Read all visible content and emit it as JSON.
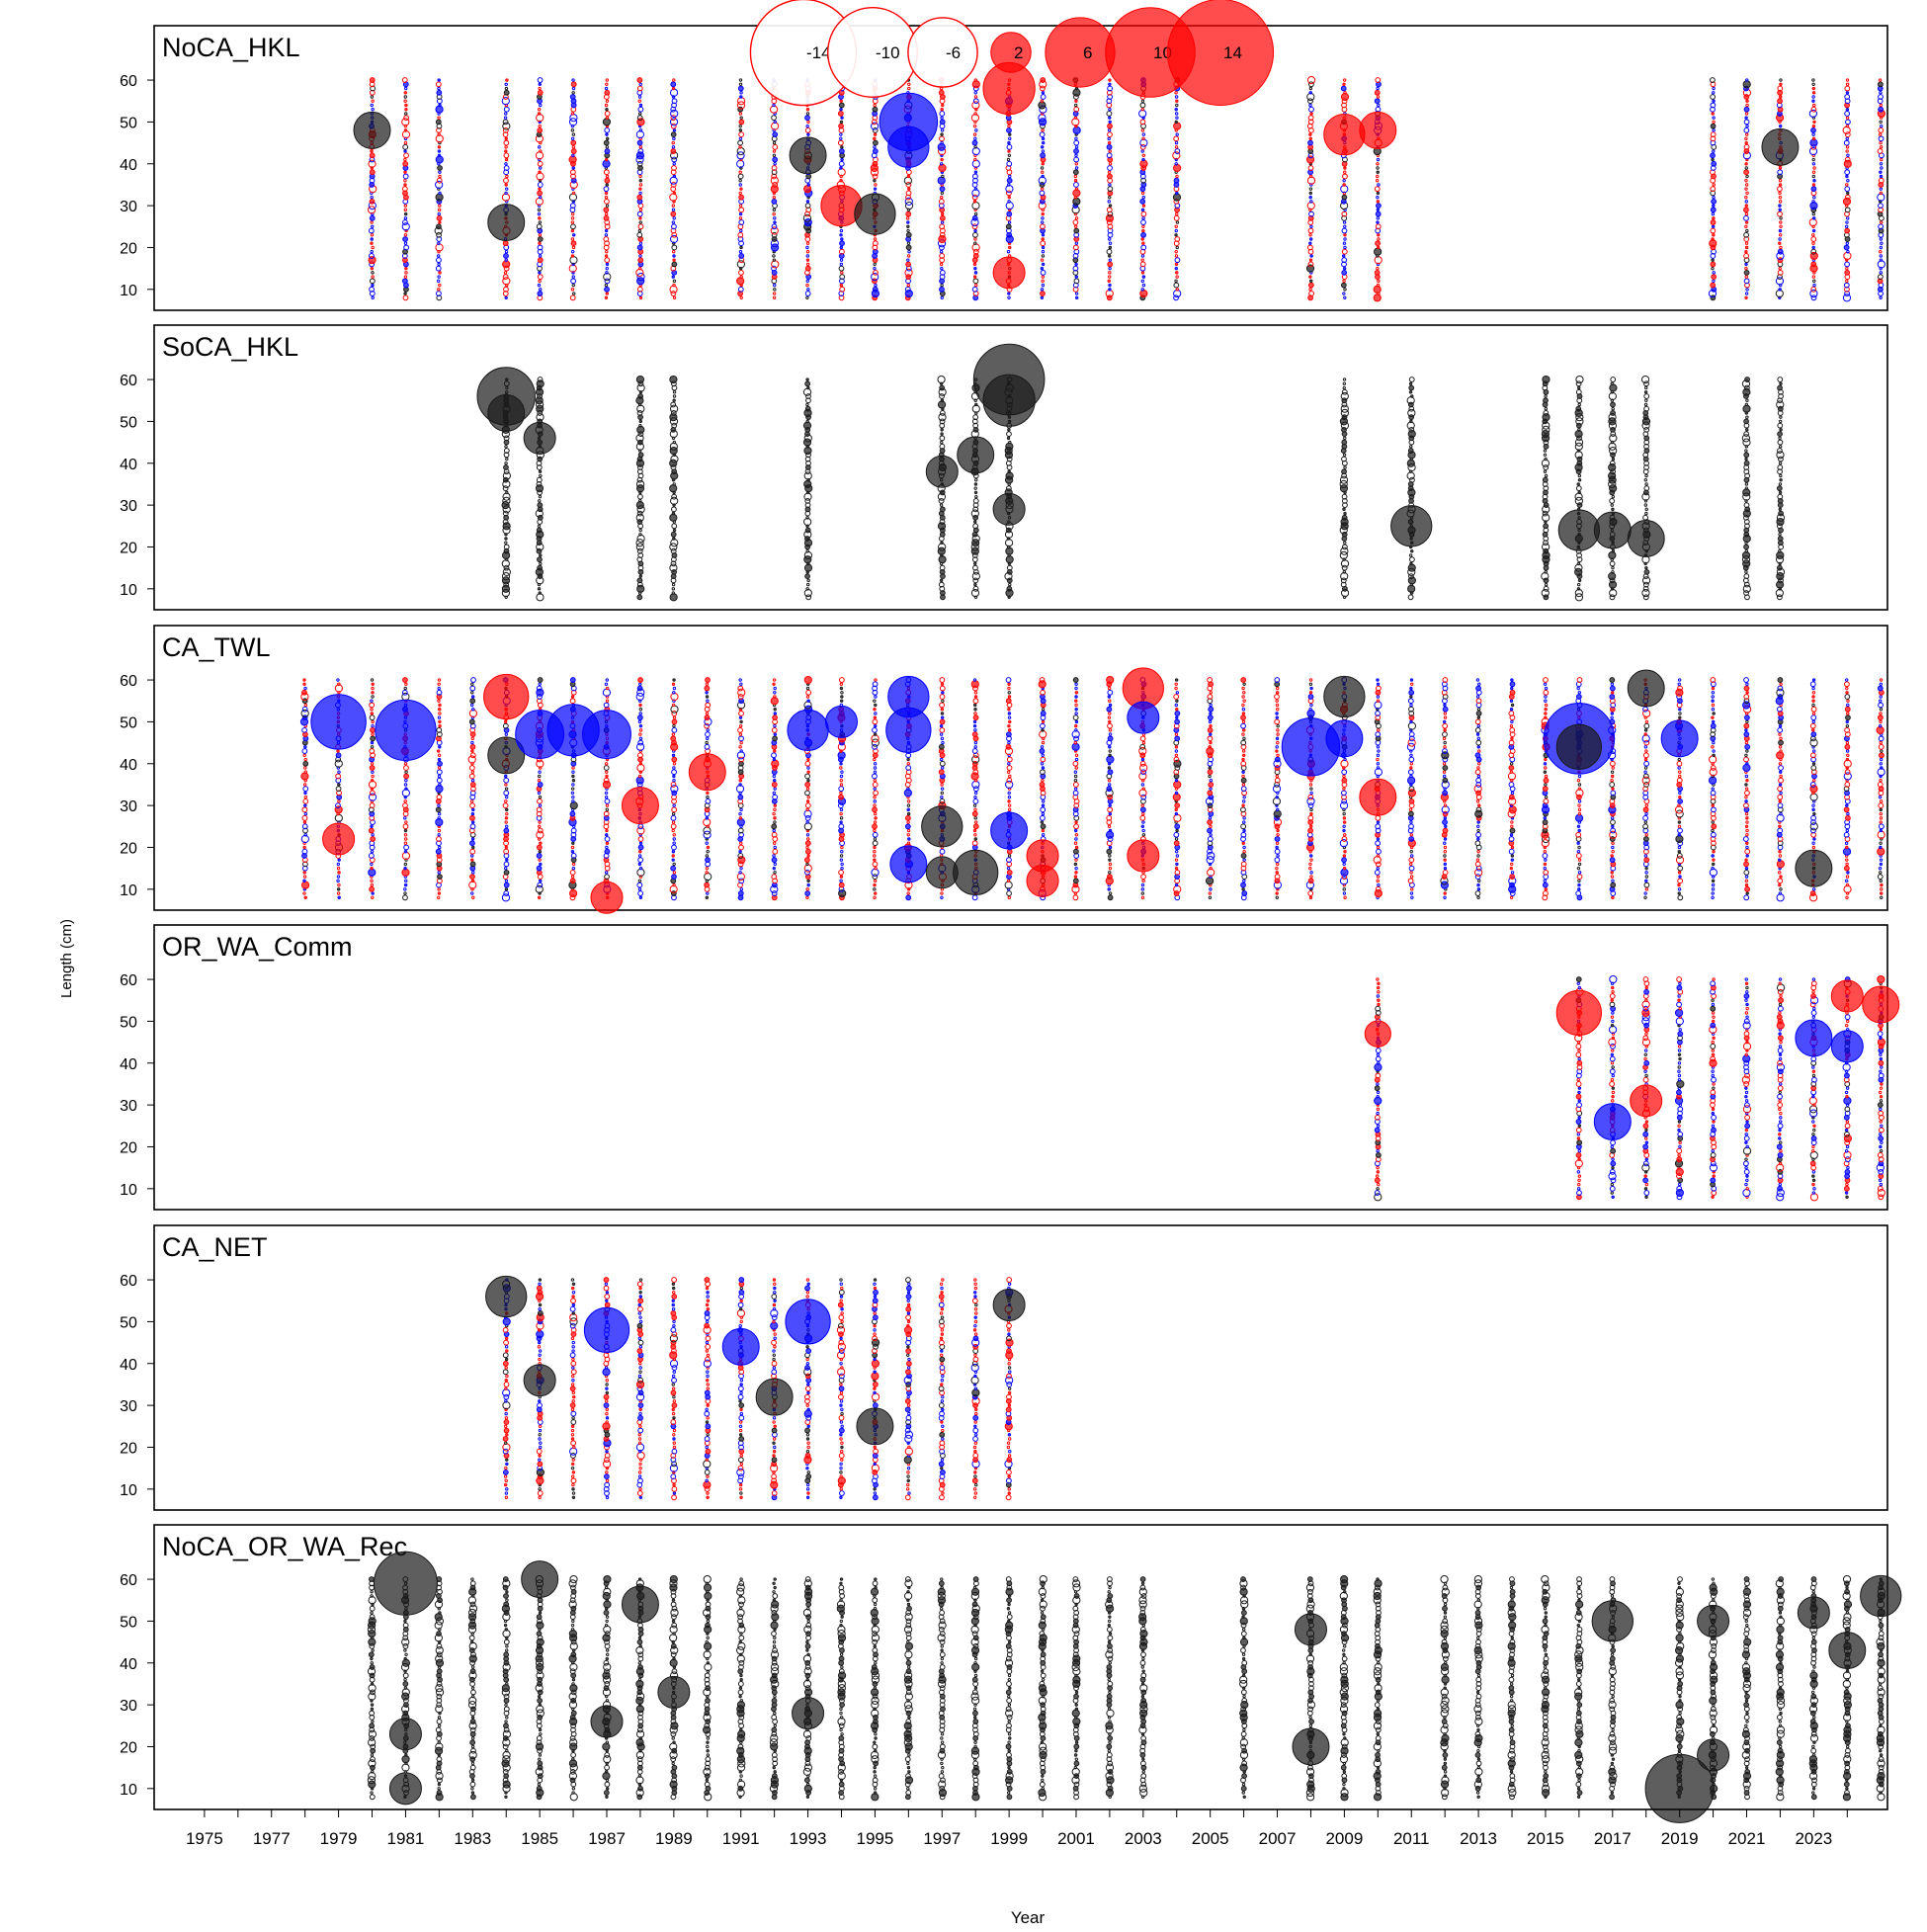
{
  "chart_data": {
    "type": "scatter",
    "subtype": "bubble (Pearson residuals)",
    "xlabel": "Year",
    "ylabel": "Length (cm)",
    "xlim": [
      1973.5,
      2025.2
    ],
    "ylim": [
      5,
      73
    ],
    "x_ticks": [
      1975,
      1976,
      1977,
      1978,
      1979,
      1980,
      1981,
      1982,
      1983,
      1984,
      1985,
      1986,
      1987,
      1988,
      1989,
      1990,
      1991,
      1992,
      1993,
      1994,
      1995,
      1996,
      1997,
      1998,
      1999,
      2000,
      2001,
      2002,
      2003,
      2004,
      2005,
      2006,
      2007,
      2008,
      2009,
      2010,
      2011,
      2012,
      2013,
      2014,
      2015,
      2016,
      2017,
      2018,
      2019,
      2020,
      2021,
      2022,
      2023,
      2024
    ],
    "x_tick_labels": [
      "1975",
      "1977",
      "1979",
      "1981",
      "1983",
      "1985",
      "1987",
      "1989",
      "1991",
      "1993",
      "1995",
      "1997",
      "1999",
      "2001",
      "2003",
      "2005",
      "2007",
      "2009",
      "2011",
      "2013",
      "2015",
      "2017",
      "2019",
      "2021",
      "2023"
    ],
    "y_ticks": [
      10,
      20,
      30,
      40,
      50,
      60
    ],
    "legend": {
      "position": "top-center",
      "entries": [
        {
          "label": "-14",
          "value": -14
        },
        {
          "label": "-10",
          "value": -10
        },
        {
          "label": "-6",
          "value": -6
        },
        {
          "label": "2",
          "value": 2
        },
        {
          "label": "6",
          "value": 6
        },
        {
          "label": "10",
          "value": 10
        },
        {
          "label": "14",
          "value": 14
        }
      ]
    },
    "colors": {
      "positive": "#ff0000",
      "negative": "#0000ff",
      "other": "#1a1a1a"
    },
    "panels": [
      {
        "name": "NoCA_HKL",
        "years": [
          1980,
          1981,
          1982,
          1984,
          1985,
          1986,
          1987,
          1988,
          1989,
          1991,
          1992,
          1993,
          1994,
          1995,
          1996,
          1997,
          1998,
          1999,
          2000,
          2001,
          2002,
          2003,
          2004,
          2008,
          2009,
          2010,
          2020,
          2021,
          2022,
          2023,
          2024,
          2025
        ],
        "highlights": [
          {
            "year": 1980,
            "length": 48,
            "value": 4,
            "color": "other"
          },
          {
            "year": 1984,
            "length": 26,
            "value": 4,
            "color": "other"
          },
          {
            "year": 1993,
            "length": 42,
            "value": 4,
            "color": "other"
          },
          {
            "year": 1994,
            "length": 30,
            "value": 5,
            "color": "positive"
          },
          {
            "year": 1995,
            "length": 28,
            "value": 5,
            "color": "other"
          },
          {
            "year": 1996,
            "length": 50,
            "value": 10,
            "color": "negative"
          },
          {
            "year": 1996,
            "length": 44,
            "value": 5,
            "color": "negative"
          },
          {
            "year": 1999,
            "length": 58,
            "value": 8,
            "color": "positive"
          },
          {
            "year": 1999,
            "length": 14,
            "value": 3,
            "color": "positive"
          },
          {
            "year": 2009,
            "length": 47,
            "value": 5,
            "color": "positive"
          },
          {
            "year": 2010,
            "length": 48,
            "value": 4,
            "color": "positive"
          },
          {
            "year": 2022,
            "length": 44,
            "value": 4,
            "color": "other"
          }
        ]
      },
      {
        "name": "SoCA_HKL",
        "years": [
          1984,
          1985,
          1988,
          1989,
          1993,
          1997,
          1998,
          1999,
          2009,
          2011,
          2015,
          2016,
          2017,
          2018,
          2021,
          2022
        ],
        "highlights": [
          {
            "year": 1984,
            "length": 56,
            "value": 10,
            "color": "other"
          },
          {
            "year": 1984,
            "length": 52,
            "value": 4,
            "color": "other"
          },
          {
            "year": 1985,
            "length": 46,
            "value": 3,
            "color": "other"
          },
          {
            "year": 1997,
            "length": 38,
            "value": 3,
            "color": "other"
          },
          {
            "year": 1998,
            "length": 42,
            "value": 4,
            "color": "other"
          },
          {
            "year": 1999,
            "length": 60,
            "value": 15,
            "color": "other"
          },
          {
            "year": 1999,
            "length": 55,
            "value": 8,
            "color": "other"
          },
          {
            "year": 1999,
            "length": 29,
            "value": 3,
            "color": "other"
          },
          {
            "year": 2011,
            "length": 25,
            "value": 5,
            "color": "other"
          },
          {
            "year": 2016,
            "length": 24,
            "value": 5,
            "color": "other"
          },
          {
            "year": 2017,
            "length": 24,
            "value": 4,
            "color": "other"
          },
          {
            "year": 2018,
            "length": 22,
            "value": 4,
            "color": "other"
          }
        ]
      },
      {
        "name": "CA_TWL",
        "years": [
          1978,
          1979,
          1980,
          1981,
          1982,
          1983,
          1984,
          1985,
          1986,
          1987,
          1988,
          1989,
          1990,
          1991,
          1992,
          1993,
          1994,
          1995,
          1996,
          1997,
          1998,
          1999,
          2000,
          2001,
          2002,
          2003,
          2004,
          2005,
          2006,
          2007,
          2008,
          2009,
          2010,
          2011,
          2012,
          2013,
          2014,
          2015,
          2016,
          2017,
          2018,
          2019,
          2020,
          2021,
          2022,
          2023,
          2024,
          2025
        ],
        "highlights": [
          {
            "year": 1979,
            "length": 50,
            "value": 9,
            "color": "negative"
          },
          {
            "year": 1979,
            "length": 22,
            "value": 3,
            "color": "positive"
          },
          {
            "year": 1981,
            "length": 48,
            "value": 11,
            "color": "negative"
          },
          {
            "year": 1984,
            "length": 56,
            "value": 6,
            "color": "positive"
          },
          {
            "year": 1984,
            "length": 42,
            "value": 4,
            "color": "other"
          },
          {
            "year": 1985,
            "length": 47,
            "value": 7,
            "color": "negative"
          },
          {
            "year": 1986,
            "length": 48,
            "value": 8,
            "color": "negative"
          },
          {
            "year": 1987,
            "length": 47,
            "value": 7,
            "color": "negative"
          },
          {
            "year": 1987,
            "length": 8,
            "value": 3,
            "color": "positive"
          },
          {
            "year": 1988,
            "length": 30,
            "value": 4,
            "color": "positive"
          },
          {
            "year": 1990,
            "length": 38,
            "value": 4,
            "color": "positive"
          },
          {
            "year": 1993,
            "length": 48,
            "value": 5,
            "color": "negative"
          },
          {
            "year": 1994,
            "length": 50,
            "value": 3,
            "color": "negative"
          },
          {
            "year": 1996,
            "length": 56,
            "value": 5,
            "color": "negative"
          },
          {
            "year": 1996,
            "length": 48,
            "value": 6,
            "color": "negative"
          },
          {
            "year": 1996,
            "length": 16,
            "value": 4,
            "color": "negative"
          },
          {
            "year": 1997,
            "length": 25,
            "value": 5,
            "color": "other"
          },
          {
            "year": 1997,
            "length": 14,
            "value": 3,
            "color": "other"
          },
          {
            "year": 1998,
            "length": 14,
            "value": 6,
            "color": "other"
          },
          {
            "year": 1999,
            "length": 24,
            "value": 4,
            "color": "negative"
          },
          {
            "year": 2000,
            "length": 18,
            "value": 3,
            "color": "positive"
          },
          {
            "year": 2000,
            "length": 12,
            "value": 3,
            "color": "positive"
          },
          {
            "year": 2003,
            "length": 58,
            "value": 5,
            "color": "positive"
          },
          {
            "year": 2003,
            "length": 51,
            "value": 3,
            "color": "negative"
          },
          {
            "year": 2003,
            "length": 18,
            "value": 3,
            "color": "positive"
          },
          {
            "year": 2008,
            "length": 44,
            "value": 10,
            "color": "negative"
          },
          {
            "year": 2009,
            "length": 56,
            "value": 5,
            "color": "other"
          },
          {
            "year": 2009,
            "length": 46,
            "value": 4,
            "color": "negative"
          },
          {
            "year": 2010,
            "length": 32,
            "value": 4,
            "color": "positive"
          },
          {
            "year": 2016,
            "length": 46,
            "value": 15,
            "color": "negative"
          },
          {
            "year": 2016,
            "length": 44,
            "value": 6,
            "color": "other"
          },
          {
            "year": 2018,
            "length": 58,
            "value": 4,
            "color": "other"
          },
          {
            "year": 2019,
            "length": 46,
            "value": 4,
            "color": "negative"
          },
          {
            "year": 2023,
            "length": 15,
            "value": 4,
            "color": "other"
          }
        ]
      },
      {
        "name": "OR_WA_Comm",
        "years": [
          2010,
          2016,
          2017,
          2018,
          2019,
          2020,
          2021,
          2022,
          2023,
          2024,
          2025
        ],
        "highlights": [
          {
            "year": 2010,
            "length": 47,
            "value": 2,
            "color": "positive"
          },
          {
            "year": 2016,
            "length": 52,
            "value": 6,
            "color": "positive"
          },
          {
            "year": 2017,
            "length": 26,
            "value": 4,
            "color": "negative"
          },
          {
            "year": 2018,
            "length": 31,
            "value": 3,
            "color": "positive"
          },
          {
            "year": 2023,
            "length": 46,
            "value": 4,
            "color": "negative"
          },
          {
            "year": 2024,
            "length": 56,
            "value": 3,
            "color": "positive"
          },
          {
            "year": 2024,
            "length": 44,
            "value": 3,
            "color": "negative"
          },
          {
            "year": 2025,
            "length": 54,
            "value": 4,
            "color": "positive"
          }
        ]
      },
      {
        "name": "CA_NET",
        "years": [
          1984,
          1985,
          1986,
          1987,
          1988,
          1989,
          1990,
          1991,
          1992,
          1993,
          1994,
          1995,
          1996,
          1997,
          1998,
          1999
        ],
        "highlights": [
          {
            "year": 1984,
            "length": 56,
            "value": 5,
            "color": "other"
          },
          {
            "year": 1985,
            "length": 36,
            "value": 3,
            "color": "other"
          },
          {
            "year": 1987,
            "length": 48,
            "value": 6,
            "color": "negative"
          },
          {
            "year": 1991,
            "length": 44,
            "value": 4,
            "color": "negative"
          },
          {
            "year": 1992,
            "length": 32,
            "value": 4,
            "color": "other"
          },
          {
            "year": 1993,
            "length": 50,
            "value": 6,
            "color": "negative"
          },
          {
            "year": 1995,
            "length": 25,
            "value": 4,
            "color": "other"
          },
          {
            "year": 1999,
            "length": 54,
            "value": 3,
            "color": "other"
          }
        ]
      },
      {
        "name": "NoCA_OR_WA_Rec",
        "years": [
          1980,
          1981,
          1982,
          1983,
          1984,
          1985,
          1986,
          1987,
          1988,
          1989,
          1990,
          1991,
          1992,
          1993,
          1994,
          1995,
          1996,
          1997,
          1998,
          1999,
          2000,
          2001,
          2002,
          2003,
          2006,
          2008,
          2009,
          2010,
          2012,
          2013,
          2014,
          2015,
          2016,
          2017,
          2019,
          2020,
          2021,
          2022,
          2023,
          2024,
          2025
        ],
        "highlights": [
          {
            "year": 1981,
            "length": 59,
            "value": 12,
            "color": "other"
          },
          {
            "year": 1981,
            "length": 23,
            "value": 3,
            "color": "other"
          },
          {
            "year": 1981,
            "length": 10,
            "value": 3,
            "color": "other"
          },
          {
            "year": 1985,
            "length": 60,
            "value": 4,
            "color": "other"
          },
          {
            "year": 1987,
            "length": 26,
            "value": 3,
            "color": "other"
          },
          {
            "year": 1988,
            "length": 54,
            "value": 4,
            "color": "other"
          },
          {
            "year": 1989,
            "length": 33,
            "value": 3,
            "color": "other"
          },
          {
            "year": 1993,
            "length": 28,
            "value": 3,
            "color": "other"
          },
          {
            "year": 2008,
            "length": 20,
            "value": 4,
            "color": "other"
          },
          {
            "year": 2008,
            "length": 48,
            "value": 3,
            "color": "other"
          },
          {
            "year": 2017,
            "length": 50,
            "value": 5,
            "color": "other"
          },
          {
            "year": 2019,
            "length": 10,
            "value": 14,
            "color": "other"
          },
          {
            "year": 2020,
            "length": 50,
            "value": 3,
            "color": "other"
          },
          {
            "year": 2020,
            "length": 18,
            "value": 3,
            "color": "other"
          },
          {
            "year": 2023,
            "length": 52,
            "value": 3,
            "color": "other"
          },
          {
            "year": 2024,
            "length": 43,
            "value": 4,
            "color": "other"
          },
          {
            "year": 2025,
            "length": 56,
            "value": 5,
            "color": "other"
          }
        ]
      }
    ]
  }
}
